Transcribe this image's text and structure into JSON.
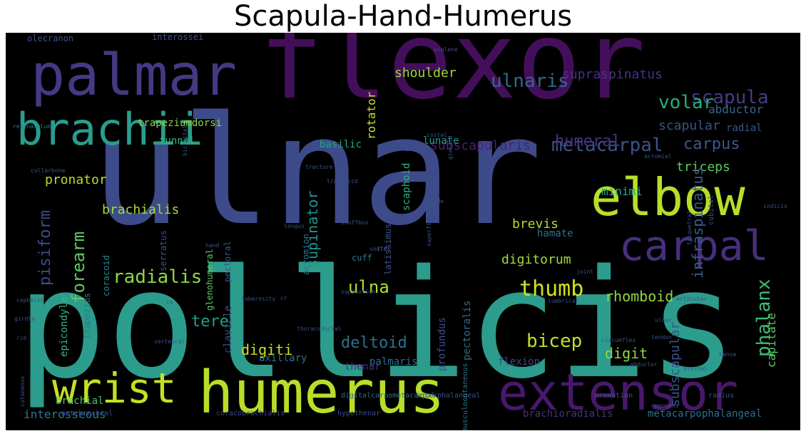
{
  "title": "Scapula-Hand-Humerus",
  "words": [
    {
      "text": "flexor",
      "color": "#440f5a",
      "size": 150,
      "rot": false
    },
    {
      "text": "ulnar",
      "color": "#3d4b8a",
      "size": 210,
      "rot": false
    },
    {
      "text": "pollicis",
      "color": "#2c9c8c",
      "size": 210,
      "rot": false
    },
    {
      "text": "palmar",
      "color": "#443a83",
      "size": 80,
      "rot": false
    },
    {
      "text": "humerus",
      "color": "#b8de29",
      "size": 82,
      "rot": false
    },
    {
      "text": "extensor",
      "color": "#48186a",
      "size": 70,
      "rot": false
    },
    {
      "text": "elbow",
      "color": "#b8de29",
      "size": 72,
      "rot": false
    },
    {
      "text": "brachii",
      "color": "#2a9d8f",
      "size": 62,
      "rot": false
    },
    {
      "text": "wrist",
      "color": "#c5e021",
      "size": 58,
      "rot": false
    },
    {
      "text": "carpal",
      "color": "#472f7d",
      "size": 58,
      "rot": false
    },
    {
      "text": "scapula",
      "color": "#433e85",
      "size": 26,
      "rot": false
    },
    {
      "text": "metacarpal",
      "color": "#3b528b",
      "size": 26,
      "rot": false
    },
    {
      "text": "thumb",
      "color": "#d2e21b",
      "size": 30,
      "rot": false
    },
    {
      "text": "ulnaris",
      "color": "#31688e",
      "size": 26,
      "rot": false
    },
    {
      "text": "volar",
      "color": "#27ad81",
      "size": 26,
      "rot": false
    },
    {
      "text": "radialis",
      "color": "#8fd744",
      "size": 26,
      "rot": false
    },
    {
      "text": "bicep",
      "color": "#c2df23",
      "size": 26,
      "rot": false
    },
    {
      "text": "phalanx",
      "color": "#3dbc74",
      "size": 26,
      "rot": true
    },
    {
      "text": "carpus",
      "color": "#38598c",
      "size": 22,
      "rot": false
    },
    {
      "text": "humeral",
      "color": "#46337f",
      "size": 22,
      "rot": false
    },
    {
      "text": "subscapularis",
      "color": "#482173",
      "size": 18,
      "rot": false
    },
    {
      "text": "supraspinatus",
      "color": "#46337f",
      "size": 18,
      "rot": false
    },
    {
      "text": "shoulder",
      "color": "#a0da39",
      "size": 18,
      "rot": false
    },
    {
      "text": "pronator",
      "color": "#b5de2b",
      "size": 18,
      "rot": false
    },
    {
      "text": "brachialis",
      "color": "#a5db36",
      "size": 18,
      "rot": false
    },
    {
      "text": "supinator",
      "color": "#20928c",
      "size": 20,
      "rot": true
    },
    {
      "text": "forearm",
      "color": "#5ec962",
      "size": 24,
      "rot": true
    },
    {
      "text": "pisiform",
      "color": "#3e4c8a",
      "size": 22,
      "rot": true
    },
    {
      "text": "ulna",
      "color": "#b0dd2f",
      "size": 24,
      "rot": false
    },
    {
      "text": "teres",
      "color": "#1fa187",
      "size": 22,
      "rot": false
    },
    {
      "text": "digiti",
      "color": "#c8e020",
      "size": 20,
      "rot": false
    },
    {
      "text": "deltoid",
      "color": "#2c728e",
      "size": 22,
      "rot": false
    },
    {
      "text": "rhomboid",
      "color": "#90d743",
      "size": 20,
      "rot": false
    },
    {
      "text": "triceps",
      "color": "#5ec962",
      "size": 18,
      "rot": false
    },
    {
      "text": "scapular",
      "color": "#3b528b",
      "size": 18,
      "rot": false
    },
    {
      "text": "abductor",
      "color": "#31688e",
      "size": 16,
      "rot": false
    },
    {
      "text": "radial",
      "color": "#3b528b",
      "size": 14,
      "rot": false
    },
    {
      "text": "minimi",
      "color": "#25ab82",
      "size": 16,
      "rot": false
    },
    {
      "text": "brevis",
      "color": "#b0dd2f",
      "size": 18,
      "rot": false
    },
    {
      "text": "hamate",
      "color": "#2c728e",
      "size": 14,
      "rot": false
    },
    {
      "text": "digitorum",
      "color": "#a2da37",
      "size": 18,
      "rot": false
    },
    {
      "text": "digit",
      "color": "#90d743",
      "size": 20,
      "rot": false
    },
    {
      "text": "infraspinatus",
      "color": "#365c8d",
      "size": 20,
      "rot": true
    },
    {
      "text": "subscapular",
      "color": "#3b528b",
      "size": 18,
      "rot": true
    },
    {
      "text": "capitate",
      "color": "#5ec962",
      "size": 16,
      "rot": true
    },
    {
      "text": "axillary",
      "color": "#2d708e",
      "size": 14,
      "rot": false
    },
    {
      "text": "palmaris",
      "color": "#2d708e",
      "size": 14,
      "rot": false
    },
    {
      "text": "thenar",
      "color": "#472d7b",
      "size": 14,
      "rot": false
    },
    {
      "text": "flexion",
      "color": "#3e4989",
      "size": 14,
      "rot": false
    },
    {
      "text": "brachial",
      "color": "#52c569",
      "size": 14,
      "rot": false
    },
    {
      "text": "interosseous",
      "color": "#2a788e",
      "size": 16,
      "rot": false
    },
    {
      "text": "brachioradialis",
      "color": "#46327e",
      "size": 14,
      "rot": false
    },
    {
      "text": "metacarpophalangeal",
      "color": "#2e6f8e",
      "size": 14,
      "rot": false
    },
    {
      "text": "rotator",
      "color": "#d0e11c",
      "size": 16,
      "rot": true
    },
    {
      "text": "trapeziumdorsi",
      "color": "#8bd646",
      "size": 14,
      "rot": false
    },
    {
      "text": "tunnel",
      "color": "#2fb47c",
      "size": 14,
      "rot": false
    },
    {
      "text": "basilic",
      "color": "#21a685",
      "size": 14,
      "rot": false
    },
    {
      "text": "lunate",
      "color": "#1f9e89",
      "size": 14,
      "rot": false
    },
    {
      "text": "scaphoid",
      "color": "#2fb47c",
      "size": 14,
      "rot": true
    },
    {
      "text": "epicondyle",
      "color": "#35b779",
      "size": 14,
      "rot": true
    },
    {
      "text": "trapezius",
      "color": "#2a788e",
      "size": 12,
      "rot": true
    },
    {
      "text": "coracoid",
      "color": "#24868e",
      "size": 12,
      "rot": true
    },
    {
      "text": "glenohumeral",
      "color": "#5ec962",
      "size": 12,
      "rot": true
    },
    {
      "text": "pectoral",
      "color": "#3b528b",
      "size": 12,
      "rot": true
    },
    {
      "text": "clavicle",
      "color": "#3b528b",
      "size": 14,
      "rot": true
    },
    {
      "text": "serratus",
      "color": "#3b528b",
      "size": 12,
      "rot": true
    },
    {
      "text": "acromion",
      "color": "#2a788e",
      "size": 12,
      "rot": true
    },
    {
      "text": "latissimus",
      "color": "#3b528b",
      "size": 12,
      "rot": true
    },
    {
      "text": "pectoralis",
      "color": "#2d708e",
      "size": 14,
      "rot": true
    },
    {
      "text": "profundus",
      "color": "#3b528b",
      "size": 14,
      "rot": true
    },
    {
      "text": "cuff",
      "color": "#2a788e",
      "size": 12,
      "rot": false
    },
    {
      "text": "interossei",
      "color": "#3b528b",
      "size": 12,
      "rot": false
    },
    {
      "text": "olecranon",
      "color": "#3b528b",
      "size": 12,
      "rot": false
    },
    {
      "text": "digitalcarpometacarpal",
      "color": "#2d708e",
      "size": 10,
      "rot": false
    },
    {
      "text": "interphalangeal",
      "color": "#3b528b",
      "size": 10,
      "rot": false
    },
    {
      "text": "musculocutaneous",
      "color": "#2a788e",
      "size": 10,
      "rot": true
    },
    {
      "text": "pronation",
      "color": "#3b528b",
      "size": 10,
      "rot": false
    },
    {
      "text": "radius",
      "color": "#3b528b",
      "size": 10,
      "rot": false
    },
    {
      "text": "antebrachial",
      "color": "#3e4989",
      "size": 10,
      "rot": false
    },
    {
      "text": "coracobrachialis",
      "color": "#3e4989",
      "size": 10,
      "rot": false
    },
    {
      "text": "hypothenar",
      "color": "#3e4989",
      "size": 10,
      "rot": false
    },
    {
      "text": "cubital",
      "color": "#3b528b",
      "size": 10,
      "rot": true
    },
    {
      "text": "retinaculum",
      "color": "#2a788e",
      "size": 8,
      "rot": false
    },
    {
      "text": "collarbone",
      "color": "#3b528b",
      "size": 8,
      "rot": false
    },
    {
      "text": "tracture",
      "color": "#3b528b",
      "size": 8,
      "rot": false
    },
    {
      "text": "scalene",
      "color": "#3b528b",
      "size": 8,
      "rot": false
    },
    {
      "text": "axilla",
      "color": "#3b528b",
      "size": 8,
      "rot": false
    },
    {
      "text": "glenoid",
      "color": "#3b528b",
      "size": 8,
      "rot": true
    },
    {
      "text": "blade",
      "color": "#3b528b",
      "size": 8,
      "rot": false
    },
    {
      "text": "bicipital",
      "color": "#3b528b",
      "size": 8,
      "rot": true
    },
    {
      "text": "acromial",
      "color": "#3b528b",
      "size": 8,
      "rot": false
    },
    {
      "text": "trapezoid",
      "color": "#3b528b",
      "size": 8,
      "rot": false
    },
    {
      "text": "longus",
      "color": "#3b528b",
      "size": 8,
      "rot": false
    },
    {
      "text": "snuffbox",
      "color": "#3b528b",
      "size": 8,
      "rot": false
    },
    {
      "text": "flex",
      "color": "#3b528b",
      "size": 8,
      "rot": false
    },
    {
      "text": "cephalic",
      "color": "#3b528b",
      "size": 8,
      "rot": false
    },
    {
      "text": "girdle",
      "color": "#3b528b",
      "size": 8,
      "rot": false
    },
    {
      "text": "rib",
      "color": "#3b528b",
      "size": 8,
      "rot": false
    },
    {
      "text": "joint",
      "color": "#3b528b",
      "size": 8,
      "rot": false
    },
    {
      "text": "tendon",
      "color": "#3b528b",
      "size": 8,
      "rot": false
    },
    {
      "text": "supination",
      "color": "#3b528b",
      "size": 8,
      "rot": false
    },
    {
      "text": "indicis",
      "color": "#3b528b",
      "size": 8,
      "rot": false
    },
    {
      "text": "cutaneous",
      "color": "#3b528b",
      "size": 8,
      "rot": true
    },
    {
      "text": "opponens",
      "color": "#3b528b",
      "size": 8,
      "rot": false
    },
    {
      "text": "articular",
      "color": "#3b528b",
      "size": 8,
      "rot": false
    },
    {
      "text": "tuberosity",
      "color": "#3b528b",
      "size": 8,
      "rot": false
    },
    {
      "text": "thoracodorsal",
      "color": "#3b528b",
      "size": 8,
      "rot": false
    },
    {
      "text": "snuff",
      "color": "#3b528b",
      "size": 8,
      "rot": false
    },
    {
      "text": "hand",
      "color": "#3b528b",
      "size": 8,
      "rot": false
    },
    {
      "text": "cs",
      "color": "#3b528b",
      "size": 8,
      "rot": false
    },
    {
      "text": "cr",
      "color": "#3b528b",
      "size": 8,
      "rot": false
    },
    {
      "text": "lumbrical",
      "color": "#3b528b",
      "size": 8,
      "rot": false
    },
    {
      "text": "triquetral",
      "color": "#3b528b",
      "size": 8,
      "rot": true
    },
    {
      "text": "kansa",
      "color": "#3b528b",
      "size": 8,
      "rot": false
    },
    {
      "text": "vertebral",
      "color": "#3b528b",
      "size": 8,
      "rot": false
    },
    {
      "text": "abductor",
      "color": "#3b528b",
      "size": 8,
      "rot": false
    },
    {
      "text": "costal",
      "color": "#3b528b",
      "size": 8,
      "rot": false
    },
    {
      "text": "circumflex",
      "color": "#3b528b",
      "size": 8,
      "rot": false
    },
    {
      "text": "sternal",
      "color": "#3b528b",
      "size": 8,
      "rot": false
    },
    {
      "text": "ulnar",
      "color": "#3b528b",
      "size": 8,
      "rot": false
    },
    {
      "text": "superficialis",
      "color": "#3b528b",
      "size": 8,
      "rot": true
    }
  ]
}
